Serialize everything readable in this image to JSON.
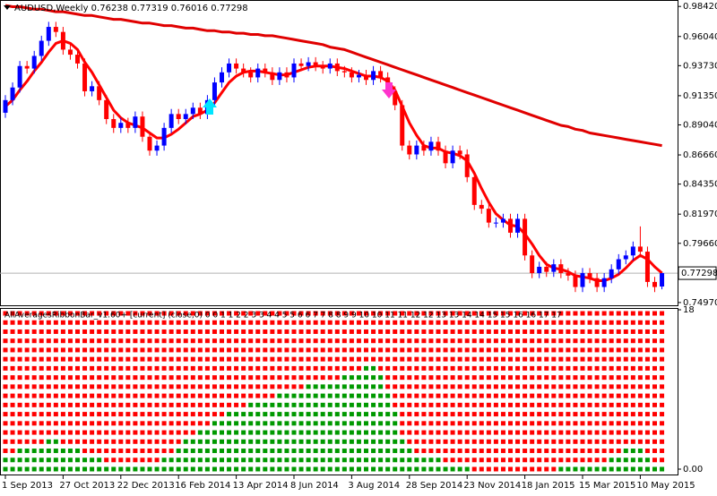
{
  "chart_data": [
    {
      "type": "candlestick",
      "title": "AUDUSD,Weekly  0.76238 0.77319 0.76016 0.77298",
      "categories": [
        "1 Sep 2013",
        null,
        null,
        null,
        null,
        null,
        null,
        null,
        "27 Oct 2013",
        null,
        null,
        null,
        null,
        null,
        null,
        null,
        "22 Dec 2013",
        null,
        null,
        null,
        null,
        null,
        null,
        null,
        "16 Feb 2014",
        null,
        null,
        null,
        null,
        null,
        null,
        null,
        "13 Apr 2014",
        null,
        null,
        null,
        null,
        null,
        null,
        null,
        "8 Jun 2014",
        null,
        null,
        null,
        null,
        null,
        null,
        null,
        "3 Aug 2014",
        null,
        null,
        null,
        null,
        null,
        null,
        null,
        "28 Sep 2014",
        null,
        null,
        null,
        null,
        null,
        null,
        null,
        "23 Nov 2014",
        null,
        null,
        null,
        null,
        null,
        null,
        null,
        "18 Jan 2015",
        null,
        null,
        null,
        null,
        null,
        null,
        null,
        "15 Mar 2015",
        null,
        null,
        null,
        null,
        null,
        null,
        null,
        "10 May 2015",
        null,
        null,
        null
      ],
      "open": [
        0.9,
        0.91,
        0.92,
        0.937,
        0.935,
        0.945,
        0.957,
        0.968,
        0.964,
        0.95,
        0.946,
        0.939,
        0.917,
        0.921,
        0.91,
        0.895,
        0.888,
        0.892,
        0.888,
        0.897,
        0.881,
        0.87,
        0.874,
        0.888,
        0.899,
        0.895,
        0.899,
        0.904,
        0.899,
        0.91,
        0.924,
        0.932,
        0.939,
        0.935,
        0.932,
        0.928,
        0.935,
        0.932,
        0.926,
        0.932,
        0.928,
        0.939,
        0.937,
        0.94,
        0.937,
        0.935,
        0.939,
        0.933,
        0.932,
        0.928,
        0.93,
        0.926,
        0.933,
        0.928,
        0.917,
        0.906,
        0.874,
        0.867,
        0.874,
        0.87,
        0.877,
        0.87,
        0.86,
        0.87,
        0.867,
        0.849,
        0.827,
        0.824,
        0.813,
        0.813,
        0.816,
        0.805,
        0.816,
        0.787,
        0.773,
        0.778,
        0.774,
        0.78,
        0.773,
        0.771,
        0.762,
        0.773,
        0.769,
        0.762,
        0.769,
        0.776,
        0.784,
        0.787,
        0.794,
        0.79,
        0.766,
        0.76238
      ],
      "high": [
        0.914,
        0.924,
        0.941,
        0.941,
        0.949,
        0.961,
        0.972,
        0.972,
        0.968,
        0.954,
        0.95,
        0.943,
        0.925,
        0.925,
        0.914,
        0.899,
        0.896,
        0.896,
        0.901,
        0.901,
        0.885,
        0.878,
        0.892,
        0.903,
        0.903,
        0.903,
        0.908,
        0.908,
        0.914,
        0.928,
        0.936,
        0.943,
        0.943,
        0.939,
        0.936,
        0.939,
        0.939,
        0.936,
        0.936,
        0.936,
        0.943,
        0.943,
        0.944,
        0.944,
        0.941,
        0.943,
        0.943,
        0.937,
        0.936,
        0.934,
        0.934,
        0.937,
        0.937,
        0.932,
        0.921,
        0.91,
        0.878,
        0.878,
        0.878,
        0.881,
        0.881,
        0.874,
        0.874,
        0.874,
        0.871,
        0.853,
        0.831,
        0.828,
        0.817,
        0.82,
        0.82,
        0.82,
        0.82,
        0.791,
        0.782,
        0.782,
        0.784,
        0.784,
        0.777,
        0.775,
        0.777,
        0.777,
        0.773,
        0.773,
        0.78,
        0.788,
        0.791,
        0.798,
        0.81,
        0.794,
        0.77,
        0.77319
      ],
      "low": [
        0.896,
        0.906,
        0.916,
        0.931,
        0.931,
        0.941,
        0.953,
        0.96,
        0.946,
        0.942,
        0.935,
        0.913,
        0.913,
        0.906,
        0.891,
        0.884,
        0.884,
        0.884,
        0.884,
        0.877,
        0.866,
        0.866,
        0.87,
        0.884,
        0.891,
        0.891,
        0.895,
        0.895,
        0.895,
        0.906,
        0.92,
        0.928,
        0.931,
        0.928,
        0.924,
        0.924,
        0.928,
        0.922,
        0.922,
        0.924,
        0.924,
        0.933,
        0.933,
        0.933,
        0.931,
        0.931,
        0.929,
        0.928,
        0.924,
        0.924,
        0.922,
        0.922,
        0.924,
        0.913,
        0.902,
        0.87,
        0.863,
        0.863,
        0.866,
        0.866,
        0.866,
        0.856,
        0.856,
        0.863,
        0.845,
        0.823,
        0.82,
        0.809,
        0.809,
        0.809,
        0.801,
        0.801,
        0.783,
        0.769,
        0.769,
        0.77,
        0.77,
        0.769,
        0.767,
        0.758,
        0.758,
        0.765,
        0.758,
        0.758,
        0.765,
        0.772,
        0.78,
        0.783,
        0.786,
        0.762,
        0.758,
        0.76016
      ],
      "close": [
        0.91,
        0.92,
        0.937,
        0.935,
        0.945,
        0.957,
        0.968,
        0.964,
        0.95,
        0.946,
        0.939,
        0.917,
        0.921,
        0.91,
        0.895,
        0.888,
        0.892,
        0.888,
        0.897,
        0.881,
        0.87,
        0.874,
        0.888,
        0.899,
        0.895,
        0.899,
        0.904,
        0.899,
        0.91,
        0.924,
        0.932,
        0.939,
        0.935,
        0.932,
        0.928,
        0.935,
        0.932,
        0.926,
        0.932,
        0.928,
        0.939,
        0.937,
        0.94,
        0.937,
        0.935,
        0.939,
        0.933,
        0.932,
        0.928,
        0.93,
        0.926,
        0.933,
        0.928,
        0.917,
        0.906,
        0.874,
        0.867,
        0.874,
        0.87,
        0.877,
        0.87,
        0.86,
        0.87,
        0.867,
        0.849,
        0.827,
        0.824,
        0.813,
        0.813,
        0.816,
        0.805,
        0.816,
        0.787,
        0.773,
        0.778,
        0.774,
        0.78,
        0.773,
        0.771,
        0.762,
        0.773,
        0.769,
        0.762,
        0.769,
        0.776,
        0.784,
        0.787,
        0.794,
        0.79,
        0.766,
        0.762,
        0.77298
      ],
      "up_color": "#0000ff",
      "down_color": "#ff0000",
      "series": [
        {
          "color": "#ff0000",
          "values": [
            0.905,
            0.91,
            0.918,
            0.925,
            0.933,
            0.94,
            0.948,
            0.955,
            0.957,
            0.955,
            0.95,
            0.94,
            0.932,
            0.922,
            0.912,
            0.902,
            0.896,
            0.892,
            0.89,
            0.888,
            0.884,
            0.88,
            0.88,
            0.883,
            0.887,
            0.892,
            0.897,
            0.899,
            0.902,
            0.908,
            0.916,
            0.924,
            0.929,
            0.932,
            0.933,
            0.933,
            0.932,
            0.931,
            0.93,
            0.93,
            0.932,
            0.934,
            0.936,
            0.937,
            0.937,
            0.937,
            0.936,
            0.935,
            0.933,
            0.931,
            0.929,
            0.929,
            0.928,
            0.925,
            0.918,
            0.905,
            0.892,
            0.882,
            0.874,
            0.872,
            0.872,
            0.869,
            0.868,
            0.866,
            0.862,
            0.852,
            0.84,
            0.829,
            0.82,
            0.815,
            0.811,
            0.81,
            0.804,
            0.796,
            0.787,
            0.78,
            0.777,
            0.776,
            0.774,
            0.771,
            0.77,
            0.769,
            0.767,
            0.767,
            0.769,
            0.772,
            0.777,
            0.783,
            0.787,
            0.784,
            0.778,
            0.773
          ]
        },
        {
          "color": "#e00000",
          "values": [
            0.985,
            0.984,
            0.984,
            0.983,
            0.982,
            0.982,
            0.981,
            0.98,
            0.98,
            0.979,
            0.978,
            0.977,
            0.977,
            0.976,
            0.975,
            0.974,
            0.974,
            0.973,
            0.972,
            0.971,
            0.971,
            0.97,
            0.969,
            0.969,
            0.968,
            0.967,
            0.967,
            0.966,
            0.965,
            0.965,
            0.964,
            0.964,
            0.963,
            0.963,
            0.962,
            0.962,
            0.961,
            0.961,
            0.96,
            0.959,
            0.958,
            0.957,
            0.956,
            0.955,
            0.954,
            0.952,
            0.951,
            0.95,
            0.948,
            0.946,
            0.944,
            0.942,
            0.94,
            0.938,
            0.936,
            0.934,
            0.932,
            0.93,
            0.928,
            0.926,
            0.924,
            0.922,
            0.92,
            0.918,
            0.916,
            0.914,
            0.912,
            0.91,
            0.908,
            0.906,
            0.904,
            0.902,
            0.9,
            0.898,
            0.896,
            0.894,
            0.892,
            0.89,
            0.889,
            0.887,
            0.886,
            0.884,
            0.883,
            0.882,
            0.881,
            0.88,
            0.879,
            0.878,
            0.877,
            0.876,
            0.875,
            0.874
          ]
        }
      ],
      "ylim": [
        0.7475,
        0.9893
      ],
      "yticks": [
        {
          "value": 0.9842,
          "label": "0.98420"
        },
        {
          "value": 0.9604,
          "label": "0.96040"
        },
        {
          "value": 0.9373,
          "label": "0.93730"
        },
        {
          "value": 0.9135,
          "label": "0.91350"
        },
        {
          "value": 0.8904,
          "label": "0.89040"
        },
        {
          "value": 0.8666,
          "label": "0.86660"
        },
        {
          "value": 0.8435,
          "label": "0.84350"
        },
        {
          "value": 0.8197,
          "label": "0.81970"
        },
        {
          "value": 0.7966,
          "label": "0.79660"
        },
        {
          "value": 0.7497,
          "label": "0.74970"
        }
      ],
      "current_price": 0.77298
    },
    {
      "type": "dots",
      "title": "AllAveragesRibbonBar_v1.60+ [current] (close,0) 0 0 1 1 2 2 3 3 4 4 5 5 6 6 7 7 8 8 9 9 10 10 11 11 12 12 13 13 14 14 15 15 16 16 17 17",
      "values": [
        2,
        2,
        3,
        3,
        3,
        3,
        4,
        4,
        3,
        3,
        3,
        2,
        2,
        2,
        1,
        1,
        1,
        1,
        1,
        1,
        1,
        1,
        2,
        2,
        3,
        4,
        4,
        5,
        5,
        6,
        6,
        7,
        7,
        7,
        8,
        8,
        8,
        8,
        9,
        9,
        9,
        9,
        10,
        10,
        10,
        10,
        10,
        11,
        11,
        11,
        12,
        12,
        11,
        9,
        7,
        4,
        3,
        2,
        2,
        2,
        2,
        1,
        1,
        1,
        1,
        0,
        0,
        0,
        0,
        0,
        0,
        0,
        0,
        0,
        0,
        0,
        0,
        1,
        1,
        1,
        1,
        1,
        1,
        1,
        2,
        2,
        3,
        3,
        3,
        2,
        1,
        1
      ],
      "ylim": [
        0,
        18
      ],
      "yticks": [
        18,
        {
          "value": 0,
          "label": "0.00"
        }
      ],
      "up_color": "#009900",
      "down_color": "#ff0000"
    }
  ]
}
